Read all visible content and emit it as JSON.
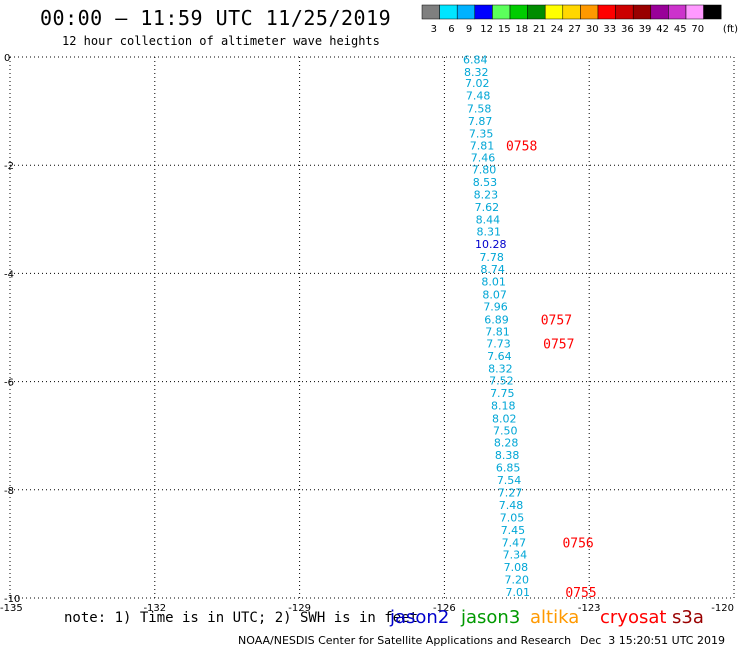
{
  "header": {
    "title": "00:00 – 11:59 UTC 11/25/2019",
    "subtitle": "12 hour collection of altimeter wave heights"
  },
  "legend": {
    "unit": "(ft)",
    "items": [
      {
        "label": "3",
        "color": "#7f7f7f"
      },
      {
        "label": "6",
        "color": "#00e5ff"
      },
      {
        "label": "9",
        "color": "#00b2ff"
      },
      {
        "label": "12",
        "color": "#0000ff"
      },
      {
        "label": "15",
        "color": "#5cff5c"
      },
      {
        "label": "18",
        "color": "#00cc00"
      },
      {
        "label": "21",
        "color": "#008c00"
      },
      {
        "label": "24",
        "color": "#ffff00"
      },
      {
        "label": "27",
        "color": "#ffd700"
      },
      {
        "label": "30",
        "color": "#ff9900"
      },
      {
        "label": "33",
        "color": "#ff0000"
      },
      {
        "label": "36",
        "color": "#cc0000"
      },
      {
        "label": "39",
        "color": "#990000"
      },
      {
        "label": "42",
        "color": "#990099"
      },
      {
        "label": "45",
        "color": "#cc33cc"
      },
      {
        "label": "70",
        "color": "#ff99ff"
      },
      {
        "label": "",
        "color": "#000000"
      }
    ]
  },
  "chart_data": {
    "type": "scatter",
    "xlim": [
      -135,
      -120
    ],
    "ylim": [
      -10,
      0
    ],
    "xticks": [
      -135,
      -132,
      -129,
      -126,
      -123,
      -120
    ],
    "xtick_labels": [
      "-135",
      "-132",
      "-129",
      "-126",
      "-123",
      "-120"
    ],
    "yticks": [
      0,
      -2,
      -4,
      -6,
      -8,
      -10
    ],
    "ytick_labels": [
      "0",
      "-2",
      "-4",
      "-6",
      "-8",
      "-10"
    ],
    "grid": true,
    "value_color": "#00a6d6",
    "highlight_color": "#0000cc",
    "time_color": "#ff0000",
    "points": [
      {
        "x": -125.36,
        "y": -0.05,
        "v": "6.84"
      },
      {
        "x": -125.34,
        "y": -0.28,
        "v": "8.32"
      },
      {
        "x": -125.32,
        "y": -0.48,
        "v": "7.02"
      },
      {
        "x": -125.3,
        "y": -0.71,
        "v": "7.48"
      },
      {
        "x": -125.28,
        "y": -0.95,
        "v": "7.58"
      },
      {
        "x": -125.26,
        "y": -1.18,
        "v": "7.87"
      },
      {
        "x": -125.24,
        "y": -1.41,
        "v": "7.35"
      },
      {
        "x": -125.22,
        "y": -1.64,
        "v": "7.81"
      },
      {
        "x": -125.2,
        "y": -1.86,
        "v": "7.46"
      },
      {
        "x": -125.18,
        "y": -2.08,
        "v": "7.80"
      },
      {
        "x": -125.16,
        "y": -2.31,
        "v": "8.53"
      },
      {
        "x": -125.14,
        "y": -2.54,
        "v": "8.23"
      },
      {
        "x": -125.12,
        "y": -2.77,
        "v": "7.62"
      },
      {
        "x": -125.1,
        "y": -3.0,
        "v": "8.44"
      },
      {
        "x": -125.08,
        "y": -3.23,
        "v": "8.31"
      },
      {
        "x": -125.04,
        "y": -3.46,
        "v": "10.28",
        "hl": true
      },
      {
        "x": -125.02,
        "y": -3.7,
        "v": "7.78"
      },
      {
        "x": -125.0,
        "y": -3.92,
        "v": "8.74"
      },
      {
        "x": -124.98,
        "y": -4.15,
        "v": "8.01"
      },
      {
        "x": -124.96,
        "y": -4.39,
        "v": "8.07"
      },
      {
        "x": -124.94,
        "y": -4.61,
        "v": "7.96"
      },
      {
        "x": -124.92,
        "y": -4.85,
        "v": "6.89"
      },
      {
        "x": -124.9,
        "y": -5.07,
        "v": "7.81"
      },
      {
        "x": -124.88,
        "y": -5.3,
        "v": "7.73"
      },
      {
        "x": -124.86,
        "y": -5.53,
        "v": "7.64"
      },
      {
        "x": -124.84,
        "y": -5.76,
        "v": "8.32"
      },
      {
        "x": -124.82,
        "y": -5.98,
        "v": "7.52"
      },
      {
        "x": -124.8,
        "y": -6.21,
        "v": "7.75"
      },
      {
        "x": -124.78,
        "y": -6.44,
        "v": "8.18"
      },
      {
        "x": -124.76,
        "y": -6.68,
        "v": "8.02"
      },
      {
        "x": -124.74,
        "y": -6.9,
        "v": "7.50"
      },
      {
        "x": -124.72,
        "y": -7.13,
        "v": "8.28"
      },
      {
        "x": -124.7,
        "y": -7.36,
        "v": "8.38"
      },
      {
        "x": -124.68,
        "y": -7.59,
        "v": "6.85"
      },
      {
        "x": -124.66,
        "y": -7.82,
        "v": "7.54"
      },
      {
        "x": -124.64,
        "y": -8.05,
        "v": "7.27"
      },
      {
        "x": -124.62,
        "y": -8.28,
        "v": "7.48"
      },
      {
        "x": -124.6,
        "y": -8.51,
        "v": "7.05"
      },
      {
        "x": -124.58,
        "y": -8.74,
        "v": "7.45"
      },
      {
        "x": -124.56,
        "y": -8.97,
        "v": "7.47"
      },
      {
        "x": -124.54,
        "y": -9.2,
        "v": "7.34"
      },
      {
        "x": -124.52,
        "y": -9.43,
        "v": "7.08"
      },
      {
        "x": -124.5,
        "y": -9.66,
        "v": "7.20"
      },
      {
        "x": -124.48,
        "y": -9.89,
        "v": "7.01"
      }
    ],
    "times": [
      {
        "x": -124.4,
        "y": -1.64,
        "label": "0758"
      },
      {
        "x": -123.68,
        "y": -4.85,
        "label": "0757"
      },
      {
        "x": -123.63,
        "y": -5.3,
        "label": "0757"
      },
      {
        "x": -123.23,
        "y": -8.97,
        "label": "0756"
      },
      {
        "x": -123.17,
        "y": -9.89,
        "label": "0755"
      }
    ]
  },
  "note": {
    "text": "note: 1) Time is in UTC; 2) SWH is in feet",
    "satellites": [
      {
        "name": "jason2",
        "color": "#0000cc"
      },
      {
        "name": "jason3",
        "color": "#009900"
      },
      {
        "name": "altika",
        "color": "#ff9900"
      },
      {
        "name": "cryosat",
        "color": "#ff0000"
      },
      {
        "name": "s3a",
        "color": "#990000"
      }
    ]
  },
  "footer": {
    "left": "NOAA/NESDIS Center for Satellite Applications and Research",
    "right": "Dec  3 15:20:51 UTC 2019"
  }
}
